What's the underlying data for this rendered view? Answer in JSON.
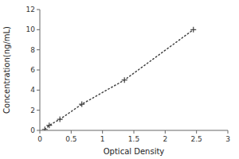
{
  "chart_data": {
    "type": "line",
    "x": [
      0.08,
      0.15,
      0.32,
      0.67,
      1.35,
      2.45
    ],
    "values": [
      0.1,
      0.5,
      1.1,
      2.6,
      5.0,
      10.0
    ],
    "xlabel": "Optical Density",
    "ylabel": "Concentration(ng/mL)",
    "xlim": [
      0,
      3
    ],
    "ylim": [
      0,
      12
    ],
    "xticks": [
      0,
      0.5,
      1,
      1.5,
      2,
      2.5,
      3
    ],
    "yticks": [
      0,
      2,
      4,
      6,
      8,
      10,
      12
    ],
    "color": "#444444",
    "marker": "plus",
    "line_style": "dotted",
    "grid": false
  }
}
